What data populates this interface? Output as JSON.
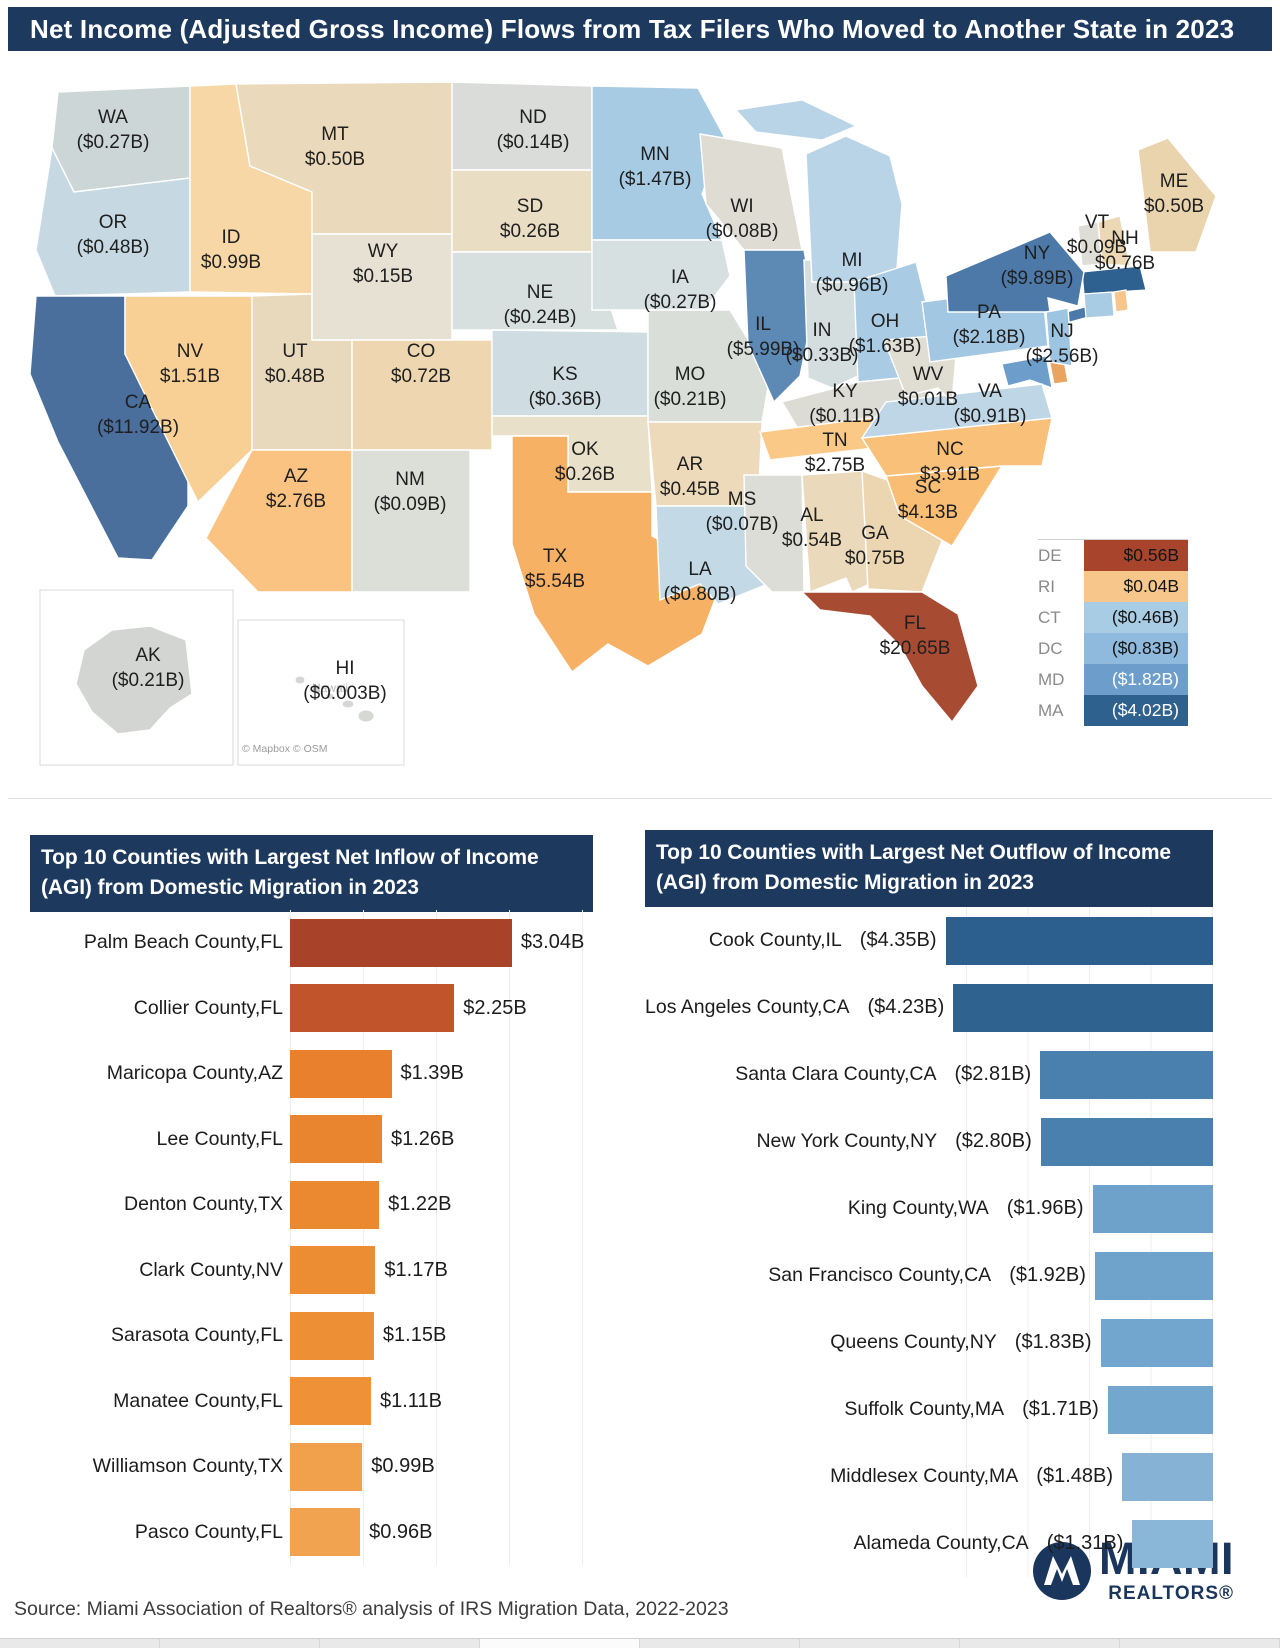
{
  "title": "Net Income (Adjusted Gross Income) Flows  from Tax Filers Who Moved to Another State in 2023",
  "map": {
    "attribution": "© Mapbox © OSM",
    "hawaii_ghost": "Hawaii",
    "states": [
      {
        "abbr": "WA",
        "value": "($0.27B)",
        "color": "#ccd6d6"
      },
      {
        "abbr": "OR",
        "value": "($0.48B)",
        "color": "#c6d9e3"
      },
      {
        "abbr": "CA",
        "value": "($11.92B)",
        "color": "#4a6f9d"
      },
      {
        "abbr": "ID",
        "value": "$0.99B",
        "color": "#f7d7a5"
      },
      {
        "abbr": "NV",
        "value": "$1.51B",
        "color": "#f8d096"
      },
      {
        "abbr": "UT",
        "value": "$0.48B",
        "color": "#e8d9bd"
      },
      {
        "abbr": "MT",
        "value": "$0.50B",
        "color": "#ead9ba"
      },
      {
        "abbr": "WY",
        "value": "$0.15B",
        "color": "#e7e1d3"
      },
      {
        "abbr": "CO",
        "value": "$0.72B",
        "color": "#eed7b0"
      },
      {
        "abbr": "AZ",
        "value": "$2.76B",
        "color": "#fac382"
      },
      {
        "abbr": "NM",
        "value": "($0.09B)",
        "color": "#dcded8"
      },
      {
        "abbr": "ND",
        "value": "($0.14B)",
        "color": "#d9dcd8"
      },
      {
        "abbr": "SD",
        "value": "$0.26B",
        "color": "#e9ddc4"
      },
      {
        "abbr": "NE",
        "value": "($0.24B)",
        "color": "#d7dfdf"
      },
      {
        "abbr": "KS",
        "value": "($0.36B)",
        "color": "#cfdde2"
      },
      {
        "abbr": "OK",
        "value": "$0.26B",
        "color": "#e9e0ca"
      },
      {
        "abbr": "TX",
        "value": "$5.54B",
        "color": "#f7b164"
      },
      {
        "abbr": "MN",
        "value": "($1.47B)",
        "color": "#a7cbe3"
      },
      {
        "abbr": "IA",
        "value": "($0.27B)",
        "color": "#d7e0e1"
      },
      {
        "abbr": "MO",
        "value": "($0.21B)",
        "color": "#d9ded9"
      },
      {
        "abbr": "AR",
        "value": "$0.45B",
        "color": "#eddaba"
      },
      {
        "abbr": "LA",
        "value": "($0.80B)",
        "color": "#c4d9e6"
      },
      {
        "abbr": "WI",
        "value": "($0.08B)",
        "color": "#dedcd3"
      },
      {
        "abbr": "IL",
        "value": "($5.99B)",
        "color": "#5d89b5"
      },
      {
        "abbr": "IN",
        "value": "($0.33B)",
        "color": "#d5dedf"
      },
      {
        "abbr": "MI",
        "value": "($0.96B)",
        "color": "#bad4e7"
      },
      {
        "abbr": "OH",
        "value": "($1.63B)",
        "color": "#a9cce4"
      },
      {
        "abbr": "KY",
        "value": "($0.11B)",
        "color": "#dcdcd5"
      },
      {
        "abbr": "TN",
        "value": "$2.75B",
        "color": "#fbc987"
      },
      {
        "abbr": "MS",
        "value": "($0.07B)",
        "color": "#dcddd6"
      },
      {
        "abbr": "AL",
        "value": "$0.54B",
        "color": "#ead9bb"
      },
      {
        "abbr": "GA",
        "value": "$0.75B",
        "color": "#ecd6b2"
      },
      {
        "abbr": "FL",
        "value": "$20.65B",
        "color": "#a84b33"
      },
      {
        "abbr": "SC",
        "value": "$4.13B",
        "color": "#f9be74"
      },
      {
        "abbr": "NC",
        "value": "$3.91B",
        "color": "#f9c07a"
      },
      {
        "abbr": "VA",
        "value": "($0.91B)",
        "color": "#bfd6e7"
      },
      {
        "abbr": "WV",
        "value": "$0.01B",
        "color": "#e0ddd3"
      },
      {
        "abbr": "PA",
        "value": "($2.18B)",
        "color": "#a2c7e3"
      },
      {
        "abbr": "NY",
        "value": "($9.89B)",
        "color": "#4d79a8"
      },
      {
        "abbr": "NJ",
        "value": "($2.56B)",
        "color": "#9dc4e1"
      },
      {
        "abbr": "VT",
        "value": "$0.09B",
        "color": "#deded6"
      },
      {
        "abbr": "NH",
        "value": "$0.76B",
        "color": "#ecd8b5"
      },
      {
        "abbr": "ME",
        "value": "$0.50B",
        "color": "#ead4ae"
      },
      {
        "abbr": "AK",
        "value": "($0.21B)",
        "color": "#d2d5d2"
      },
      {
        "abbr": "HI",
        "value": "($0.003B)",
        "color": "#d6d8d4"
      }
    ],
    "patches": [
      {
        "id": "MI-UP",
        "color": "#bad4e7"
      },
      {
        "id": "LI",
        "color": "#4d79a8"
      },
      {
        "id": "MA",
        "color": "#2e618f"
      },
      {
        "id": "CT",
        "color": "#a9cce5"
      },
      {
        "id": "RI",
        "color": "#f6c68a"
      },
      {
        "id": "MD",
        "color": "#6d9ecb"
      },
      {
        "id": "DE",
        "color": "#e9a45f"
      }
    ],
    "legend": [
      {
        "abbr": "DE",
        "value": "$0.56B",
        "bg": "#a8432c",
        "fg": "#141414"
      },
      {
        "abbr": "RI",
        "value": "$0.04B",
        "bg": "#f6c68a",
        "fg": "#141414"
      },
      {
        "abbr": "CT",
        "value": "($0.46B)",
        "bg": "#a9cce5",
        "fg": "#141414"
      },
      {
        "abbr": "DC",
        "value": "($0.83B)",
        "bg": "#8fbadd",
        "fg": "#141414"
      },
      {
        "abbr": "MD",
        "value": "($1.82B)",
        "bg": "#6d9ecb",
        "fg": "#ffffff"
      },
      {
        "abbr": "MA",
        "value": "($4.02B)",
        "bg": "#2f618f",
        "fg": "#ffffff"
      }
    ]
  },
  "chart_data": [
    {
      "type": "bar",
      "orientation": "horizontal",
      "direction": "right",
      "title": "Top 10 Counties with Largest Net Inflow of Income (AGI) from Domestic Migration  in 2023",
      "unit": "USD billions",
      "categories": [
        "Palm Beach County,FL",
        "Collier County,FL",
        "Maricopa County,AZ",
        "Lee County,FL",
        "Denton County,TX",
        "Clark County,NV",
        "Sarasota County,FL",
        "Manatee County,FL",
        "Williamson County,TX",
        "Pasco County,FL"
      ],
      "values": [
        3.04,
        2.25,
        1.39,
        1.26,
        1.22,
        1.17,
        1.15,
        1.11,
        0.99,
        0.96
      ],
      "value_labels": [
        "$3.04B",
        "$2.25B",
        "$1.39B",
        "$1.26B",
        "$1.22B",
        "$1.17B",
        "$1.15B",
        "$1.11B",
        "$0.99B",
        "$0.96B"
      ],
      "bar_colors": [
        "#a8432a",
        "#c2542b",
        "#e8802d",
        "#ea852f",
        "#eb8931",
        "#ec8c33",
        "#ed8f35",
        "#ee9137",
        "#f1a04c",
        "#f2a350"
      ]
    },
    {
      "type": "bar",
      "orientation": "horizontal",
      "direction": "left",
      "title": "Top 10 Counties with Largest Net Outflow of Income (AGI) from Domestic Migration in 2023",
      "unit": "USD billions",
      "categories": [
        "Cook County,IL",
        "Los Angeles County,CA",
        "Santa Clara County,CA",
        "New York County,NY",
        "King County,WA",
        "San Francisco County,CA",
        "Queens County,NY",
        "Suffolk County,MA",
        "Middlesex County,MA",
        "Alameda County,CA"
      ],
      "values": [
        -4.35,
        -4.23,
        -2.81,
        -2.8,
        -1.96,
        -1.92,
        -1.83,
        -1.71,
        -1.48,
        -1.31
      ],
      "value_labels": [
        "($4.35B)",
        "($4.23B)",
        "($2.81B)",
        "($2.80B)",
        "($1.96B)",
        "($1.92B)",
        "($1.83B)",
        "($1.71B)",
        "($1.48B)",
        "($1.31B)"
      ],
      "bar_colors": [
        "#2d5f8e",
        "#2f628f",
        "#4a80ad",
        "#4a80ad",
        "#6ea2cb",
        "#6fa3cc",
        "#73a6ce",
        "#74a7ce",
        "#85b2d5",
        "#8ab6d8"
      ]
    }
  ],
  "source": "Source: Miami Association of Realtors® analysis of IRS Migration Data, 2022-2023",
  "logo": {
    "brand": "MIAMI",
    "sub": "REALTORS®"
  }
}
